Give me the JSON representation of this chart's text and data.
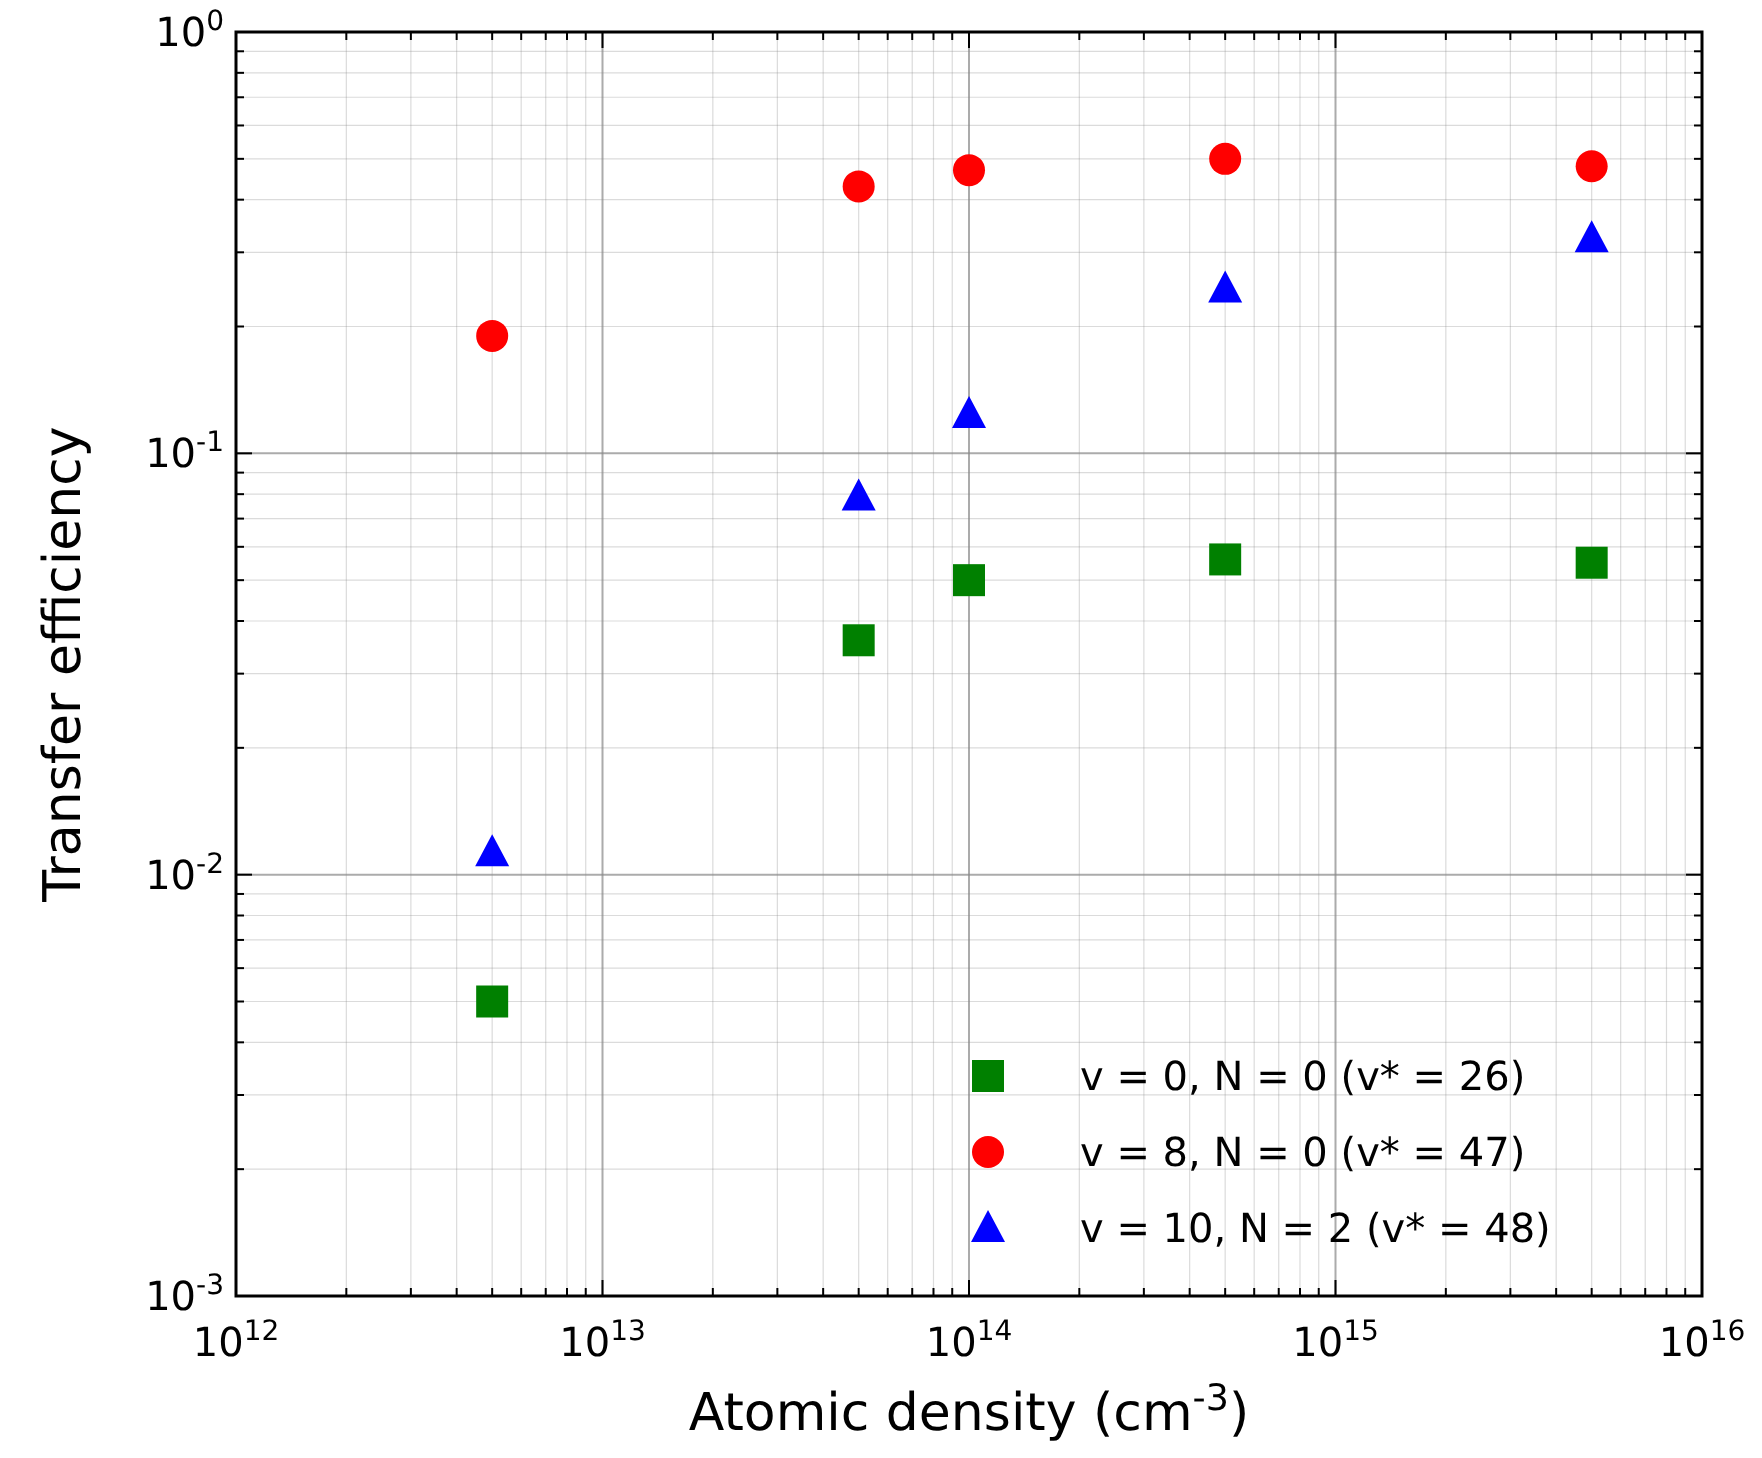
{
  "chart_data": {
    "type": "scatter",
    "xlabel": "Atomic density (cm$^{-3}$)",
    "ylabel": "Transfer efficiency",
    "log": "xy",
    "grid": true,
    "legend": "bottom right",
    "x": [
      5000000000000.0,
      50000000000000.0,
      100000000000000.0,
      500000000000000.0,
      5000000000000000.0
    ],
    "xlim": [
      1000000000000.0,
      1e+16
    ],
    "ylim": [
      0.001,
      1
    ],
    "xticks": [
      {
        "value": 1000000000000.0,
        "label": "10$^{12}$"
      },
      {
        "value": 2000000000000.0,
        "label": null
      },
      {
        "value": 3000000000000.0,
        "label": null
      },
      {
        "value": 4000000000000.0,
        "label": null
      },
      {
        "value": 5000000000000.0,
        "label": null
      },
      {
        "value": 6000000000000.0,
        "label": null
      },
      {
        "value": 7000000000000.0,
        "label": null
      },
      {
        "value": 8000000000000.0,
        "label": null
      },
      {
        "value": 9000000000000.0,
        "label": null
      },
      {
        "value": 10000000000000.0,
        "label": "10$^{13}$"
      },
      {
        "value": 20000000000000.0,
        "label": null
      },
      {
        "value": 30000000000000.0,
        "label": null
      },
      {
        "value": 40000000000000.0,
        "label": null
      },
      {
        "value": 50000000000000.0,
        "label": null
      },
      {
        "value": 60000000000000.0,
        "label": null
      },
      {
        "value": 70000000000000.0,
        "label": null
      },
      {
        "value": 80000000000000.0,
        "label": null
      },
      {
        "value": 90000000000000.0,
        "label": null
      },
      {
        "value": 100000000000000.0,
        "label": "10$^{14}$"
      },
      {
        "value": 200000000000000.0,
        "label": null
      },
      {
        "value": 300000000000000.0,
        "label": null
      },
      {
        "value": 400000000000000.0,
        "label": null
      },
      {
        "value": 500000000000000.0,
        "label": null
      },
      {
        "value": 600000000000000.0,
        "label": null
      },
      {
        "value": 700000000000000.0,
        "label": null
      },
      {
        "value": 800000000000000.0,
        "label": null
      },
      {
        "value": 900000000000000.0,
        "label": null
      },
      {
        "value": 1000000000000000.0,
        "label": "10$^{15}$"
      },
      {
        "value": 2000000000000000.0,
        "label": null
      },
      {
        "value": 3000000000000000.0,
        "label": null
      },
      {
        "value": 4000000000000000.0,
        "label": null
      },
      {
        "value": 5000000000000000.0,
        "label": null
      },
      {
        "value": 6000000000000000.0,
        "label": null
      },
      {
        "value": 7000000000000000.0,
        "label": null
      },
      {
        "value": 8000000000000000.0,
        "label": null
      },
      {
        "value": 9000000000000000.0,
        "label": null
      },
      {
        "value": 1e+16,
        "label": "10$^{16}$"
      }
    ],
    "yticks": [
      {
        "value": 0.001,
        "label": "10$^{-3}$"
      },
      {
        "value": 0.002,
        "label": null
      },
      {
        "value": 0.003,
        "label": null
      },
      {
        "value": 0.004,
        "label": null
      },
      {
        "value": 0.005,
        "label": null
      },
      {
        "value": 0.006,
        "label": null
      },
      {
        "value": 0.007,
        "label": null
      },
      {
        "value": 0.008,
        "label": null
      },
      {
        "value": 0.009,
        "label": null
      },
      {
        "value": 0.01,
        "label": "10$^{-2}$"
      },
      {
        "value": 0.02,
        "label": null
      },
      {
        "value": 0.03,
        "label": null
      },
      {
        "value": 0.04,
        "label": null
      },
      {
        "value": 0.05,
        "label": null
      },
      {
        "value": 0.06,
        "label": null
      },
      {
        "value": 0.07,
        "label": null
      },
      {
        "value": 0.08,
        "label": null
      },
      {
        "value": 0.09,
        "label": null
      },
      {
        "value": 0.1,
        "label": "10$^{-1}$"
      },
      {
        "value": 0.2,
        "label": null
      },
      {
        "value": 0.3,
        "label": null
      },
      {
        "value": 0.4,
        "label": null
      },
      {
        "value": 0.5,
        "label": null
      },
      {
        "value": 0.6,
        "label": null
      },
      {
        "value": 0.7,
        "label": null
      },
      {
        "value": 0.8,
        "label": null
      },
      {
        "value": 0.9,
        "label": null
      },
      {
        "value": 1,
        "label": "10$^{0}$"
      }
    ],
    "series": [
      {
        "name": "v = 0, N = 0 (v* = 26)",
        "color": "#008000",
        "marker": "square",
        "values": [
          0.005,
          0.036,
          0.05,
          0.056,
          0.055
        ]
      },
      {
        "name": "v = 8, N = 0 (v* = 47)",
        "color": "#ff0000",
        "marker": "circle",
        "values": [
          0.19,
          0.43,
          0.47,
          0.5,
          0.48
        ]
      },
      {
        "name": "v = 10, N = 2 (v* = 48)",
        "color": "#0000ff",
        "marker": "triangle",
        "values": [
          0.0113,
          0.079,
          0.124,
          0.246,
          0.324
        ]
      }
    ]
  }
}
